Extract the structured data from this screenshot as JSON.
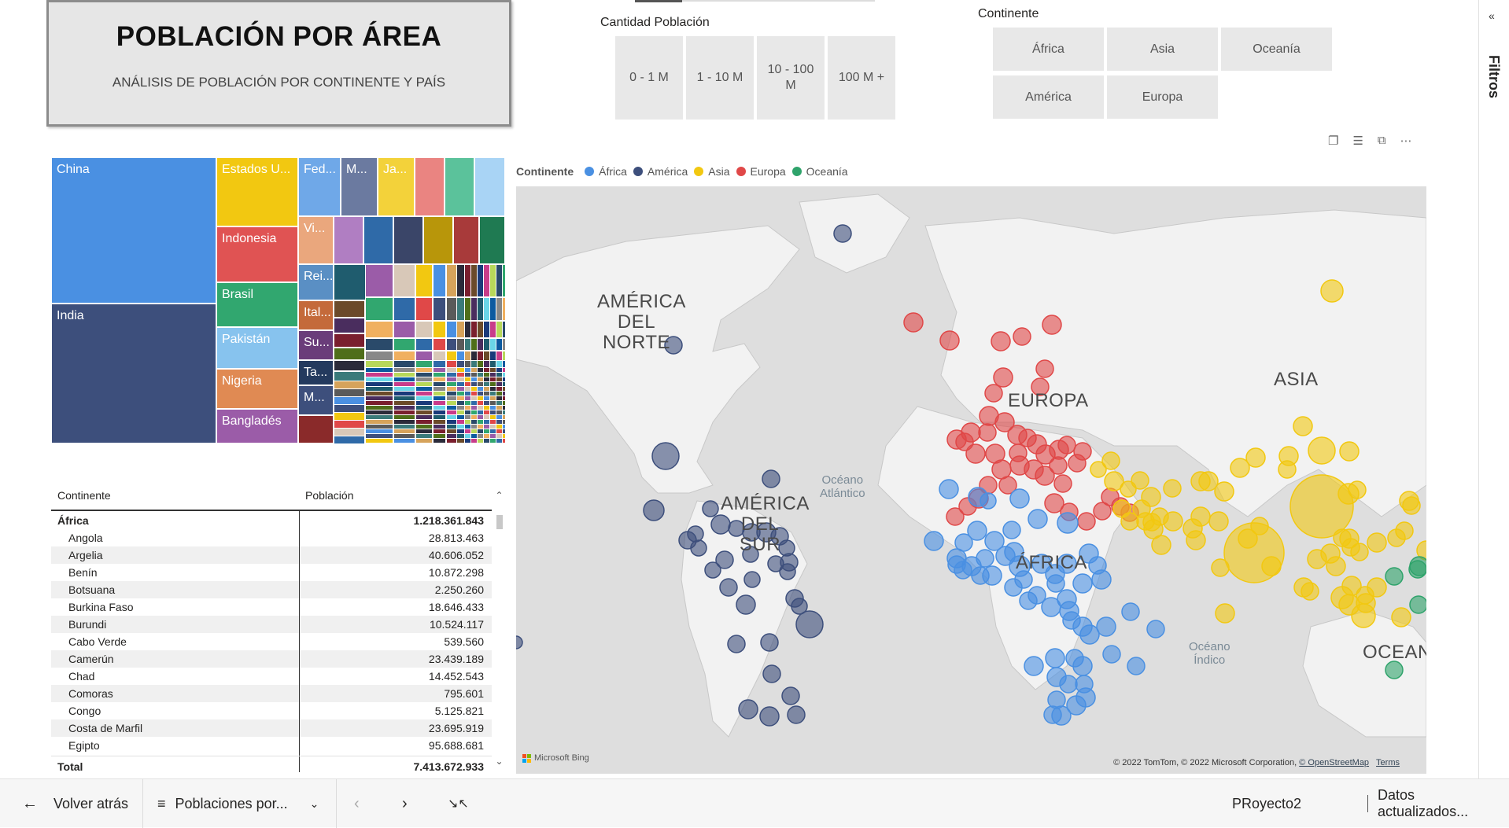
{
  "title": {
    "main": "POBLACIÓN POR ÁREA",
    "subtitle": "ANÁLISIS DE POBLACIÓN POR CONTINENTE Y PAÍS"
  },
  "slicers": {
    "population": {
      "label": "Cantidad Población",
      "options": [
        "0 - 1 M",
        "1 - 10 M",
        "10 - 100 M",
        "100 M +"
      ]
    },
    "continent": {
      "label": "Continente",
      "options": [
        "África",
        "Asia",
        "Oceanía",
        "América",
        "Europa"
      ]
    }
  },
  "treemap": {
    "labels": {
      "china": "China",
      "india": "India",
      "usa": "Estados U...",
      "indonesia": "Indonesia",
      "brasil": "Brasil",
      "pakistan": "Pakistán",
      "nigeria": "Nigeria",
      "bangladesh": "Bangladés",
      "fed": "Fed...",
      "m1": "M...",
      "ja": "Ja...",
      "vi": "Vi...",
      "rei": "Rei...",
      "ital": "Ital...",
      "su": "Su...",
      "ta": "Ta...",
      "m2": "M..."
    }
  },
  "table": {
    "headers": {
      "continent": "Continente",
      "population": "Población"
    },
    "group": {
      "name": "África",
      "value": "1.218.361.843"
    },
    "rows": [
      {
        "name": "Angola",
        "value": "28.813.463"
      },
      {
        "name": "Argelia",
        "value": "40.606.052"
      },
      {
        "name": "Benín",
        "value": "10.872.298"
      },
      {
        "name": "Botsuana",
        "value": "2.250.260"
      },
      {
        "name": "Burkina Faso",
        "value": "18.646.433"
      },
      {
        "name": "Burundi",
        "value": "10.524.117"
      },
      {
        "name": "Cabo Verde",
        "value": "539.560"
      },
      {
        "name": "Camerún",
        "value": "23.439.189"
      },
      {
        "name": "Chad",
        "value": "14.452.543"
      },
      {
        "name": "Comoras",
        "value": "795.601"
      },
      {
        "name": "Congo",
        "value": "5.125.821"
      },
      {
        "name": "Costa de Marfil",
        "value": "23.695.919"
      },
      {
        "name": "Egipto",
        "value": "95.688.681"
      }
    ],
    "total": {
      "name": "Total",
      "value": "7.413.672.933"
    }
  },
  "map": {
    "legend_title": "Continente",
    "legend": [
      {
        "name": "África",
        "color": "#4a90e2"
      },
      {
        "name": "América",
        "color": "#3d4f7c"
      },
      {
        "name": "Asia",
        "color": "#f2c811"
      },
      {
        "name": "Europa",
        "color": "#e04848"
      },
      {
        "name": "Oceanía",
        "color": "#2fa36b"
      }
    ],
    "labels": {
      "na": "AMÉRICA\nDEL\nNORTE",
      "sa": "AMÉRICA\nDEL\nSUR",
      "europa": "EUROPA",
      "asia": "ASIA",
      "africa": "ÁFRICA",
      "ocean": "OCEAN"
    },
    "oceans": {
      "atlantic": "Océano\nAtlántico",
      "indian": "Océano\nÍndico"
    },
    "attribution": "© 2022 TomTom, © 2022 Microsoft Corporation,",
    "osm": "© OpenStreetMap",
    "terms": "Terms",
    "bing": "Microsoft Bing"
  },
  "filters": {
    "label": "Filtros"
  },
  "bottom": {
    "back": "Volver atrás",
    "page": "Poblaciones por...",
    "project": "PRoyecto2",
    "updated": "Datos actualizados..."
  }
}
